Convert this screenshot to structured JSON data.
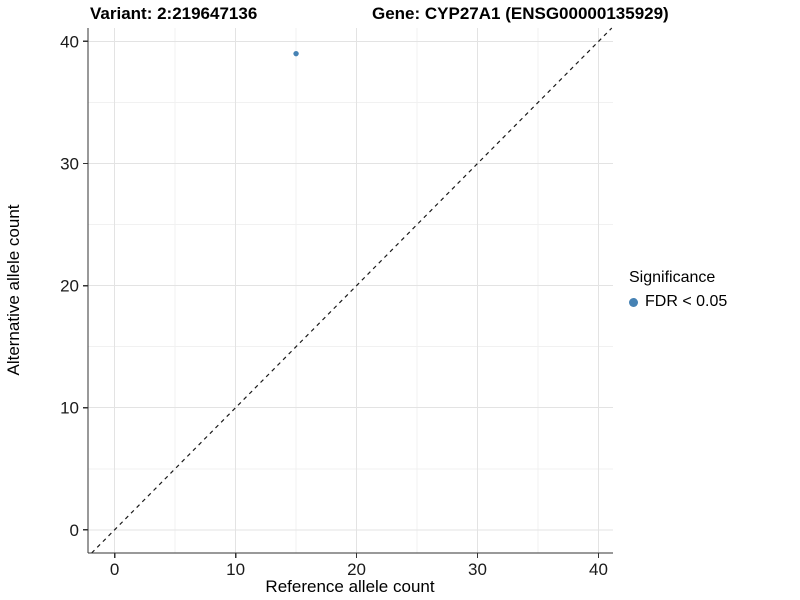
{
  "chart_data": {
    "type": "scatter",
    "titles": {
      "left": "Variant: 2:219647136",
      "right": "Gene: CYP27A1 (ENSG00000135929)"
    },
    "xlabel": "Reference allele count",
    "ylabel": "Alternative allele count",
    "xlim": [
      -2.2,
      41.2
    ],
    "ylim": [
      -1.9,
      41.1
    ],
    "x_ticks": [
      0,
      10,
      20,
      30,
      40
    ],
    "y_ticks": [
      0,
      10,
      20,
      30,
      40
    ],
    "x_minor_ticks": [
      5,
      15,
      25,
      35
    ],
    "y_minor_ticks": [
      5,
      15,
      25,
      35
    ],
    "grid": "major+minor",
    "series": [
      {
        "name": "FDR < 0.05",
        "color": "#4682B4",
        "points": [
          {
            "x": 15,
            "y": 39
          }
        ]
      }
    ],
    "reference_line": {
      "type": "identity y=x",
      "style": "dashed",
      "color": "#1a1a1a"
    },
    "legend": {
      "title": "Significance",
      "position": "right",
      "items": [
        {
          "label": "FDR < 0.05",
          "marker": "circle",
          "color": "#4682B4"
        }
      ]
    }
  },
  "colors": {
    "background": "#ffffff",
    "grid_major": "#e3e3e3",
    "grid_minor": "#f1f1f1",
    "axis_line": "#333333",
    "tick_text": "#1a1a1a",
    "point": "#4682B4"
  }
}
